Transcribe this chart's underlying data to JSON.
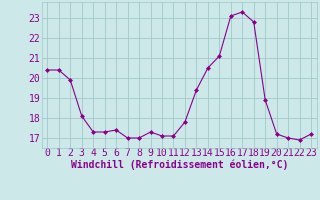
{
  "x": [
    0,
    1,
    2,
    3,
    4,
    5,
    6,
    7,
    8,
    9,
    10,
    11,
    12,
    13,
    14,
    15,
    16,
    17,
    18,
    19,
    20,
    21,
    22,
    23
  ],
  "y": [
    20.4,
    20.4,
    19.9,
    18.1,
    17.3,
    17.3,
    17.4,
    17.0,
    17.0,
    17.3,
    17.1,
    17.1,
    17.8,
    19.4,
    20.5,
    21.1,
    23.1,
    23.3,
    22.8,
    18.9,
    17.2,
    17.0,
    16.9,
    17.2
  ],
  "line_color": "#8B008B",
  "marker": "D",
  "marker_size": 2,
  "bg_color": "#cce8e8",
  "grid_color": "#a0c8c8",
  "xlabel": "Windchill (Refroidissement éolien,°C)",
  "xlabel_fontsize": 7,
  "tick_fontsize": 7,
  "ylim": [
    16.5,
    23.8
  ],
  "xlim": [
    -0.5,
    23.5
  ],
  "yticks": [
    17,
    18,
    19,
    20,
    21,
    22,
    23
  ],
  "xticks": [
    0,
    1,
    2,
    3,
    4,
    5,
    6,
    7,
    8,
    9,
    10,
    11,
    12,
    13,
    14,
    15,
    16,
    17,
    18,
    19,
    20,
    21,
    22,
    23
  ],
  "fig_width": 3.2,
  "fig_height": 2.0,
  "dpi": 100
}
